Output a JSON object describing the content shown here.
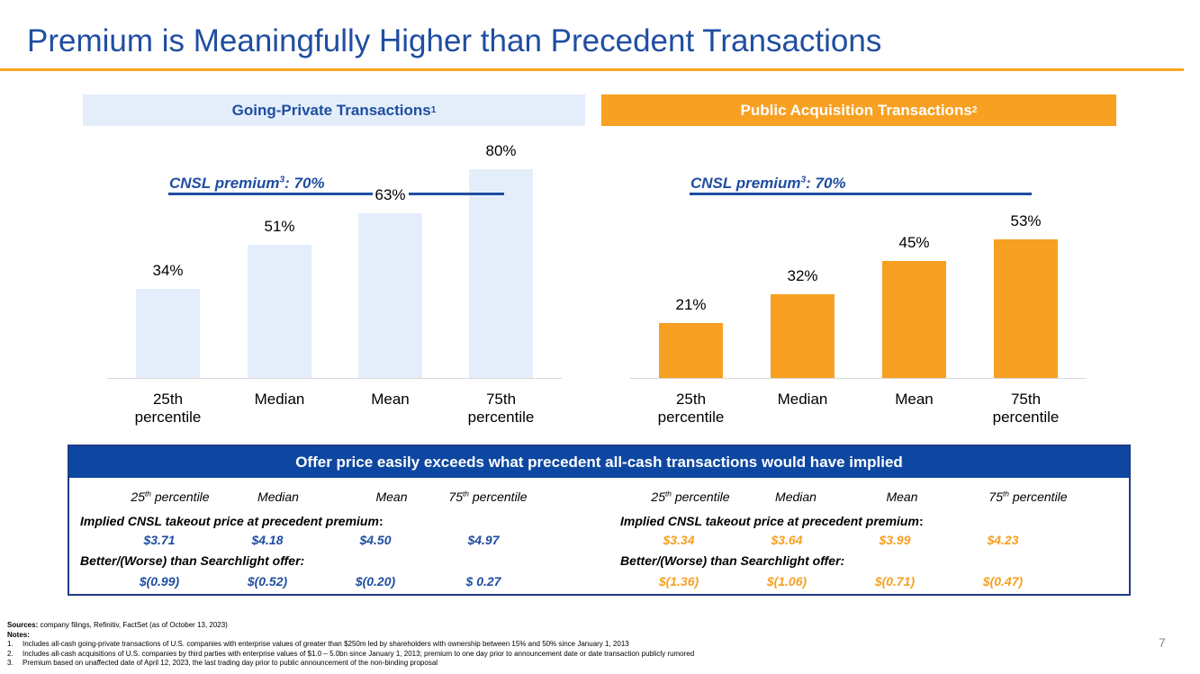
{
  "title": "Premium is Meaningfully Higher than Precedent Transactions",
  "page_number": "7",
  "colors": {
    "blue": "#1F4EA1",
    "orange": "#F7A021",
    "light_blue": "#E4EEFB"
  },
  "chart_data": [
    {
      "type": "bar",
      "title": "Going-Private Transactions",
      "title_footnote": "1",
      "categories": [
        "25th percentile",
        "Median",
        "Mean",
        "75th percentile"
      ],
      "values": [
        34,
        51,
        63,
        80
      ],
      "value_labels": [
        "34%",
        "51%",
        "63%",
        "80%"
      ],
      "unit": "%",
      "ylim": [
        0,
        85
      ],
      "reference_line": {
        "label": "CNSL premium",
        "footnote": "3",
        "value_label": ": 70%",
        "value": 70
      },
      "color": "#E4EEFB"
    },
    {
      "type": "bar",
      "title": "Public Acquisition Transactions",
      "title_footnote": "2",
      "categories": [
        "25th percentile",
        "Median",
        "Mean",
        "75th percentile"
      ],
      "values": [
        21,
        32,
        45,
        53
      ],
      "value_labels": [
        "21%",
        "32%",
        "45%",
        "53%"
      ],
      "unit": "%",
      "ylim": [
        0,
        85
      ],
      "reference_line": {
        "label": "CNSL premium",
        "footnote": "3",
        "value_label": ": 70%",
        "value": 70
      },
      "color": "#F7A021"
    }
  ],
  "category_labels": [
    [
      "25th",
      "percentile"
    ],
    [
      "Median",
      ""
    ],
    [
      "Mean",
      ""
    ],
    [
      "75th",
      "percentile"
    ]
  ],
  "table": {
    "header": "Offer price easily exceeds what precedent all-cash transactions would have implied",
    "columns": [
      {
        "num": "25",
        "sup": "th",
        "text": " percentile"
      },
      {
        "num": "Median",
        "sup": "",
        "text": ""
      },
      {
        "num": "Mean",
        "sup": "",
        "text": ""
      },
      {
        "num": "75",
        "sup": "th",
        "text": " percentile"
      }
    ],
    "implied_label": "Implied CNSL takeout price at precedent premium",
    "colon": ":",
    "better_label": "Better/(Worse) than Searchlight offer:",
    "left": {
      "implied": [
        "$3.71",
        "$4.18",
        "$4.50",
        "$4.97"
      ],
      "better": [
        "$(0.99)",
        "$(0.52)",
        "$(0.20)",
        "$ 0.27"
      ]
    },
    "right": {
      "implied": [
        "$3.34",
        "$3.64",
        "$3.99",
        "$4.23"
      ],
      "better": [
        "$(1.36)",
        "$(1.06)",
        "$(0.71)",
        "$(0.47)"
      ]
    }
  },
  "sources": {
    "label": "Sources:",
    "text": " company filings, Refinitiv, FactSet (as of October 13, 2023)"
  },
  "notes_label": "Notes",
  "notes": [
    {
      "n": "1.",
      "text": "Includes all-cash going-private transactions of U.S. companies with enterprise values of greater than $250m led by shareholders with ownership between 15% and 50% since January 1, 2013"
    },
    {
      "n": "2.",
      "text": "Includes all-cash acquisitions of U.S. companies by third parties with enterprise values of $1.0 – 5.0bn since January 1, 2013; premium to one day prior to announcement date or date transaction publicly rumored"
    },
    {
      "n": "3.",
      "text": "Premium based on unaffected date of April 12, 2023, the last trading day prior to public announcement of the non-binding proposal"
    }
  ]
}
